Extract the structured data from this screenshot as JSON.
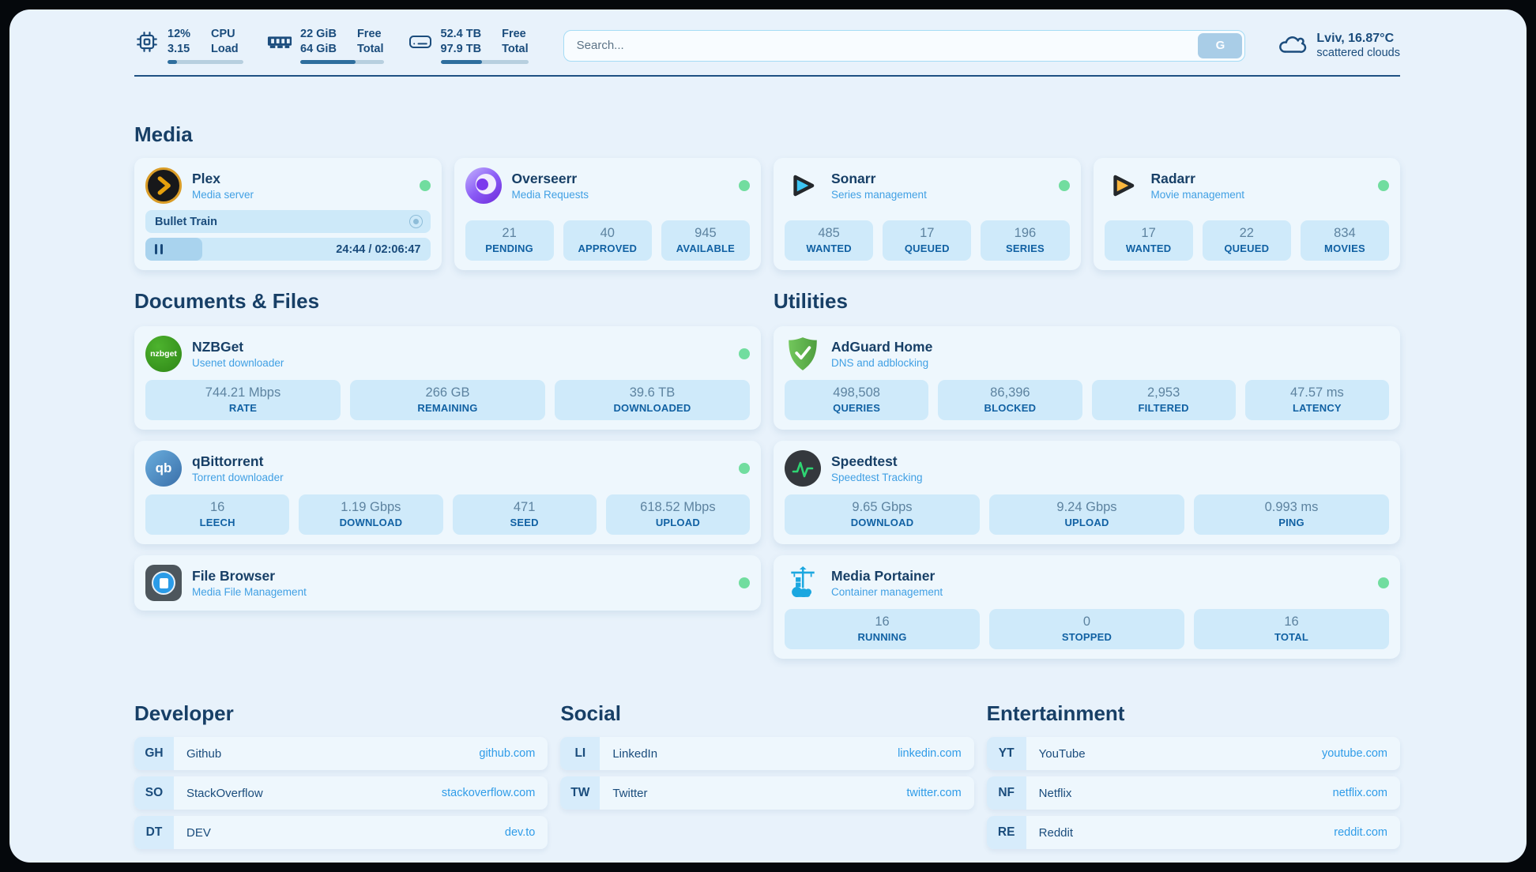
{
  "header": {
    "widgets": [
      {
        "icon": "cpu-icon",
        "values": [
          "12%",
          "3.15"
        ],
        "labels": [
          "CPU",
          "Load"
        ],
        "progress": 12
      },
      {
        "icon": "ram-icon",
        "values": [
          "22 GiB",
          "64 GiB"
        ],
        "labels": [
          "Free",
          "Total"
        ],
        "progress": 66
      },
      {
        "icon": "disk-icon",
        "values": [
          "52.4 TB",
          "97.9 TB"
        ],
        "labels": [
          "Free",
          "Total"
        ],
        "progress": 47
      }
    ],
    "search": {
      "placeholder": "Search...",
      "button_label": "G"
    },
    "weather": {
      "summary": "Lviv, 16.87°C",
      "condition": "scattered clouds"
    }
  },
  "media": {
    "heading": "Media",
    "plex": {
      "title": "Plex",
      "subtitle": "Media server",
      "now_playing": "Bullet Train",
      "time": "24:44 / 02:06:47",
      "progress": 20
    },
    "overseerr": {
      "title": "Overseerr",
      "subtitle": "Media Requests",
      "stats": [
        {
          "value": "21",
          "label": "PENDING"
        },
        {
          "value": "40",
          "label": "APPROVED"
        },
        {
          "value": "945",
          "label": "AVAILABLE"
        }
      ]
    },
    "sonarr": {
      "title": "Sonarr",
      "subtitle": "Series management",
      "stats": [
        {
          "value": "485",
          "label": "WANTED"
        },
        {
          "value": "17",
          "label": "QUEUED"
        },
        {
          "value": "196",
          "label": "SERIES"
        }
      ]
    },
    "radarr": {
      "title": "Radarr",
      "subtitle": "Movie management",
      "stats": [
        {
          "value": "17",
          "label": "WANTED"
        },
        {
          "value": "22",
          "label": "QUEUED"
        },
        {
          "value": "834",
          "label": "MOVIES"
        }
      ]
    }
  },
  "documents": {
    "heading": "Documents & Files",
    "nzbget": {
      "title": "NZBGet",
      "subtitle": "Usenet downloader",
      "logo_text": "nzbget",
      "stats": [
        {
          "value": "744.21 Mbps",
          "label": "RATE"
        },
        {
          "value": "266 GB",
          "label": "REMAINING"
        },
        {
          "value": "39.6 TB",
          "label": "DOWNLOADED"
        }
      ]
    },
    "qbittorrent": {
      "title": "qBittorrent",
      "subtitle": "Torrent downloader",
      "logo_text": "qb",
      "stats": [
        {
          "value": "16",
          "label": "LEECH"
        },
        {
          "value": "1.19 Gbps",
          "label": "DOWNLOAD"
        },
        {
          "value": "471",
          "label": "SEED"
        },
        {
          "value": "618.52 Mbps",
          "label": "UPLOAD"
        }
      ]
    },
    "filebrowser": {
      "title": "File Browser",
      "subtitle": "Media File Management"
    }
  },
  "utilities": {
    "heading": "Utilities",
    "adguard": {
      "title": "AdGuard Home",
      "subtitle": "DNS and adblocking",
      "stats": [
        {
          "value": "498,508",
          "label": "QUERIES"
        },
        {
          "value": "86,396",
          "label": "BLOCKED"
        },
        {
          "value": "2,953",
          "label": "FILTERED"
        },
        {
          "value": "47.57 ms",
          "label": "LATENCY"
        }
      ]
    },
    "speedtest": {
      "title": "Speedtest",
      "subtitle": "Speedtest Tracking",
      "stats": [
        {
          "value": "9.65 Gbps",
          "label": "DOWNLOAD"
        },
        {
          "value": "9.24 Gbps",
          "label": "UPLOAD"
        },
        {
          "value": "0.993 ms",
          "label": "PING"
        }
      ]
    },
    "portainer": {
      "title": "Media Portainer",
      "subtitle": "Container management",
      "stats": [
        {
          "value": "16",
          "label": "RUNNING"
        },
        {
          "value": "0",
          "label": "STOPPED"
        },
        {
          "value": "16",
          "label": "TOTAL"
        }
      ]
    }
  },
  "bookmarks": {
    "developer": {
      "heading": "Developer",
      "links": [
        {
          "badge": "GH",
          "name": "Github",
          "url": "github.com"
        },
        {
          "badge": "SO",
          "name": "StackOverflow",
          "url": "stackoverflow.com"
        },
        {
          "badge": "DT",
          "name": "DEV",
          "url": "dev.to"
        }
      ]
    },
    "social": {
      "heading": "Social",
      "links": [
        {
          "badge": "LI",
          "name": "LinkedIn",
          "url": "linkedin.com"
        },
        {
          "badge": "TW",
          "name": "Twitter",
          "url": "twitter.com"
        }
      ]
    },
    "entertainment": {
      "heading": "Entertainment",
      "links": [
        {
          "badge": "YT",
          "name": "YouTube",
          "url": "youtube.com"
        },
        {
          "badge": "NF",
          "name": "Netflix",
          "url": "netflix.com"
        },
        {
          "badge": "RE",
          "name": "Reddit",
          "url": "reddit.com"
        }
      ]
    }
  },
  "colors": {
    "accent": "#2f9ce8",
    "navy": "#173f66",
    "status_online": "#71dd9f",
    "page_bg": "#e8f2fb"
  }
}
